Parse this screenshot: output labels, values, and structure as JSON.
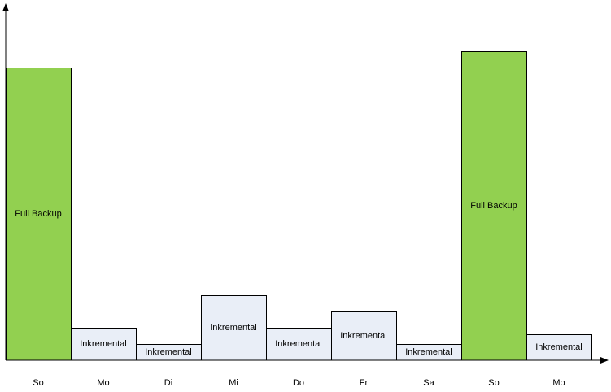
{
  "chart_data": {
    "type": "bar",
    "title": "",
    "xlabel": "",
    "ylabel": "",
    "grid": false,
    "legend": "none",
    "categories": [
      "So",
      "Mo",
      "Di",
      "Mi",
      "Do",
      "Fr",
      "Sa",
      "So",
      "Mo"
    ],
    "values": [
      90,
      10,
      5,
      20,
      10,
      15,
      5,
      95,
      8
    ],
    "bar_labels": [
      "Full Backup",
      "Inkremental",
      "Inkremental",
      "Inkremental",
      "Inkremental",
      "Inkremental",
      "Inkremental",
      "Full Backup",
      "Inkremental"
    ],
    "bar_kinds": [
      "full",
      "incremental",
      "incremental",
      "incremental",
      "incremental",
      "incremental",
      "incremental",
      "full",
      "incremental"
    ],
    "ylim": [
      0,
      100
    ],
    "colors": {
      "full": "#92d050",
      "incremental": "#e9eef7",
      "bar_stroke": "#000000",
      "axis": "#000000"
    }
  }
}
